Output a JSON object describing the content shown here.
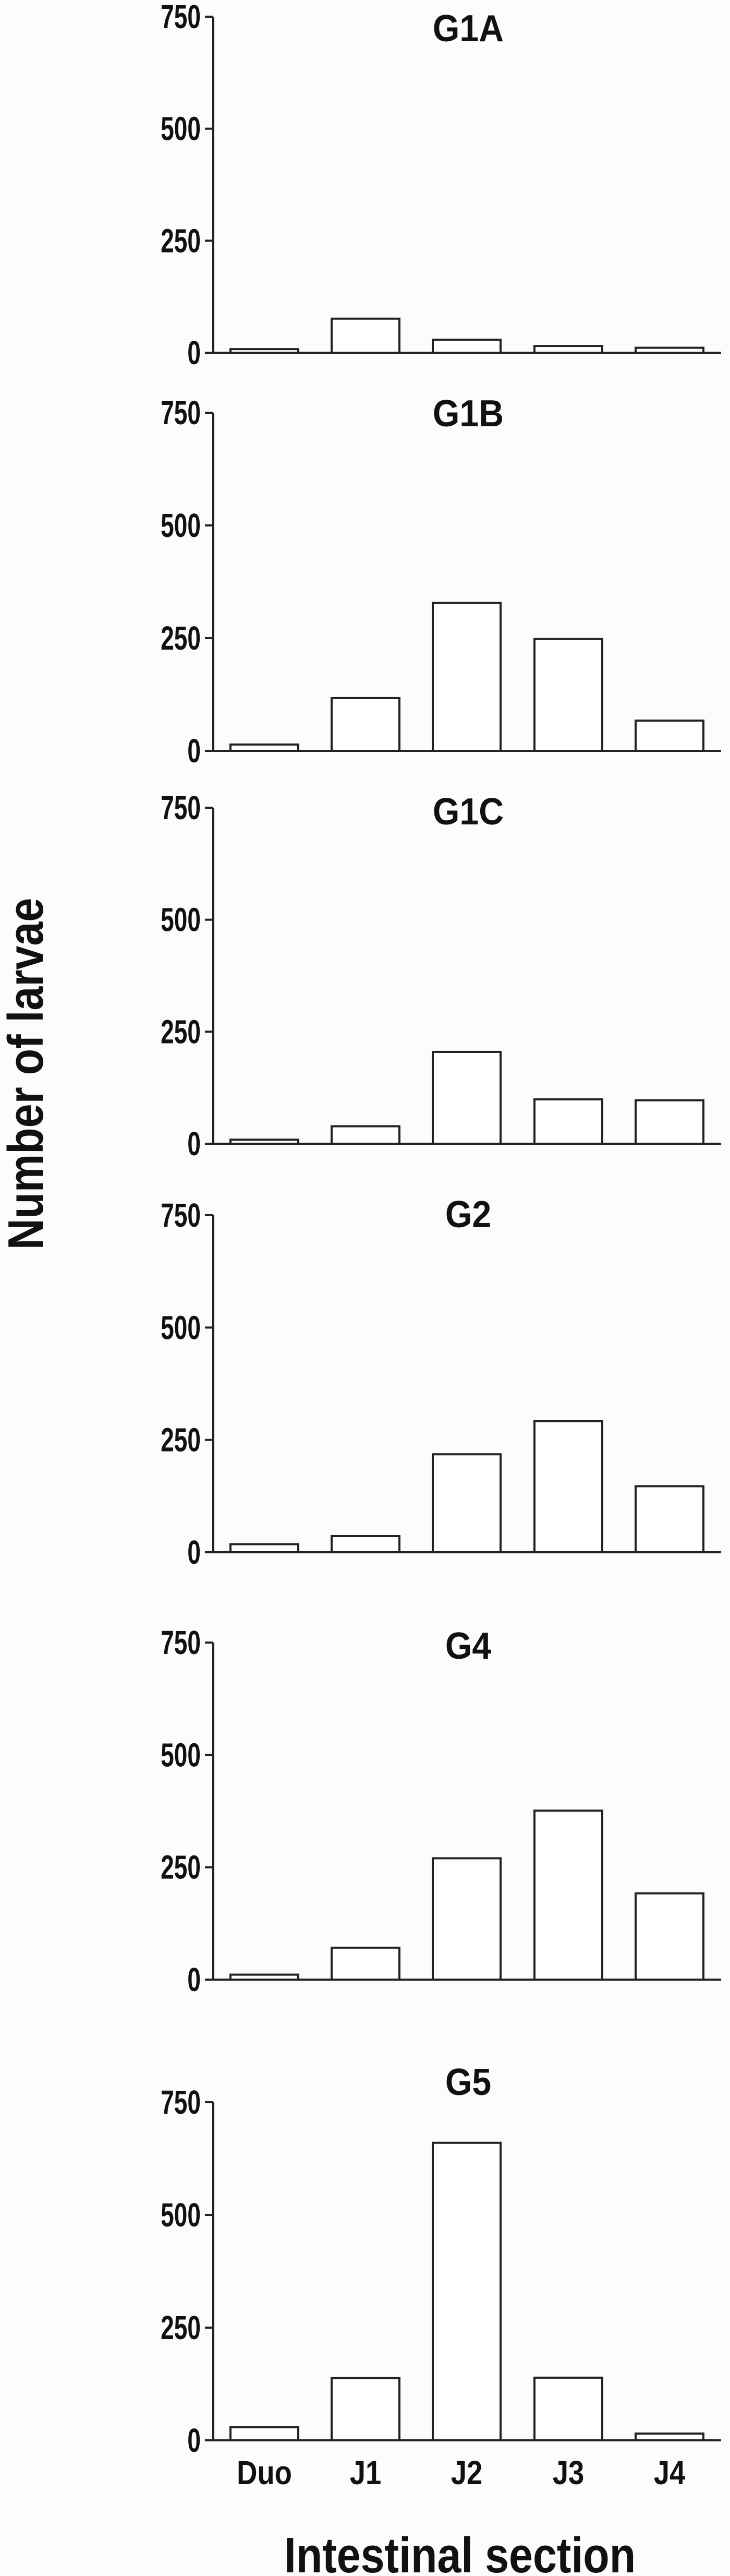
{
  "figure": {
    "y_axis_title": "Number of larvae",
    "x_axis_title": "Intestinal section"
  },
  "chart_data": {
    "type": "bar",
    "layout": "6 vertically stacked panels sharing x categories",
    "categories": [
      "Duo",
      "J1",
      "J2",
      "J3",
      "J4"
    ],
    "xlabel": "Intestinal section",
    "ylabel": "Number of larvae",
    "ylim": [
      0,
      750
    ],
    "yticks": [
      0,
      250,
      500,
      750
    ],
    "grid": false,
    "legend": null,
    "bar_style": {
      "fill": "#ffffff",
      "stroke": "#222222"
    },
    "series": [
      {
        "name": "G1A",
        "values": [
          8,
          76,
          29,
          15,
          11
        ]
      },
      {
        "name": "G1B",
        "values": [
          14,
          117,
          328,
          248,
          67
        ]
      },
      {
        "name": "G1C",
        "values": [
          9,
          39,
          205,
          99,
          97
        ]
      },
      {
        "name": "G2",
        "values": [
          18,
          36,
          218,
          292,
          147
        ]
      },
      {
        "name": "G4",
        "values": [
          11,
          71,
          270,
          376,
          192
        ]
      },
      {
        "name": "G5",
        "values": [
          29,
          138,
          660,
          139,
          15
        ]
      }
    ]
  }
}
